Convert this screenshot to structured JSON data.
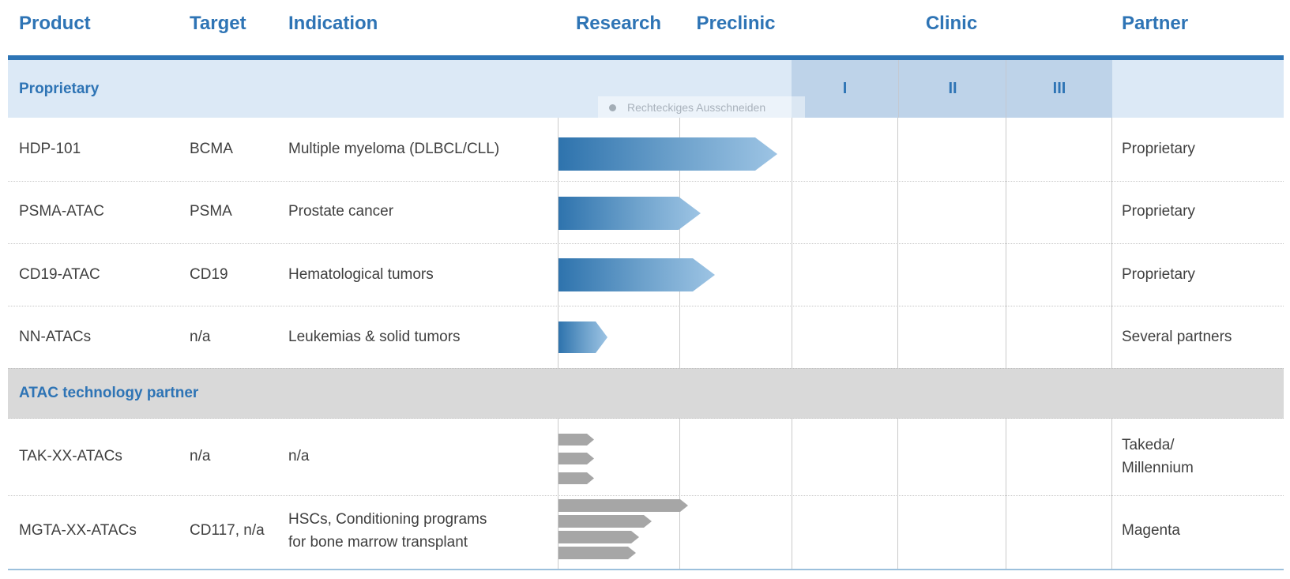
{
  "header": {
    "product": "Product",
    "target": "Target",
    "indication": "Indication",
    "research": "Research",
    "preclinic": "Preclinic",
    "clinic": "Clinic",
    "partner": "Partner"
  },
  "clinic_phases": {
    "p1": "I",
    "p2": "II",
    "p3": "III"
  },
  "sections": {
    "proprietary": "Proprietary",
    "atac_partner": "ATAC technology partner"
  },
  "watermark": {
    "label": "Rechteckiges Ausschneiden"
  },
  "rows": [
    {
      "product": "HDP-101",
      "target": "BCMA",
      "indication": "Multiple myeloma (DLBCL/CLL)",
      "partner": "Proprietary"
    },
    {
      "product": "PSMA-ATAC",
      "target": "PSMA",
      "indication": "Prostate cancer",
      "partner": "Proprietary"
    },
    {
      "product": "CD19-ATAC",
      "target": "CD19",
      "indication": "Hematological tumors",
      "partner": "Proprietary"
    },
    {
      "product": "NN-ATACs",
      "target": "n/a",
      "indication": "Leukemias & solid tumors",
      "partner": "Several partners"
    },
    {
      "product": "TAK-XX-ATACs",
      "target": "n/a",
      "indication": "n/a",
      "partner_lines": [
        "Takeda/",
        "Millennium"
      ]
    },
    {
      "product": "MGTA-XX-ATACs",
      "target": "CD117, n/a",
      "indication_lines": [
        "HSCs, Conditioning programs",
        "for bone marrow transplant"
      ],
      "partner": "Magenta"
    }
  ],
  "chart_data": {
    "type": "bar",
    "title": "Heidelberg Pharma-style product pipeline progression",
    "orientation": "horizontal",
    "phase_axis": [
      "Research",
      "Preclinic",
      "Clinic I",
      "Clinic II",
      "Clinic III"
    ],
    "value_unit": "phase units: 0 = Research start, 1 = Preclinic start, 2 = Clinic I start, 5 = Clinic III end",
    "series": [
      {
        "name": "HDP-101",
        "style": "blue-gradient",
        "values": [
          1.87
        ]
      },
      {
        "name": "PSMA-ATAC",
        "style": "blue-gradient",
        "values": [
          1.19
        ]
      },
      {
        "name": "CD19-ATAC",
        "style": "blue-gradient",
        "values": [
          1.32
        ]
      },
      {
        "name": "NN-ATACs",
        "style": "blue-gradient",
        "values": [
          0.41
        ]
      },
      {
        "name": "TAK-XX-ATACs",
        "style": "gray",
        "values": [
          0.3,
          0.3,
          0.3
        ]
      },
      {
        "name": "MGTA-XX-ATACs",
        "style": "gray",
        "values": [
          1.08,
          0.77,
          0.67,
          0.64
        ]
      }
    ],
    "legend": "none",
    "grid": "vertical phase gridlines on"
  },
  "colors": {
    "header_blue": "#2e74b5",
    "accent_line": "#2e75b6",
    "band_light": "#dce9f6",
    "band_dark": "#bed3e9",
    "section_gray": "#d9d9d9",
    "bar_blue_start": "#2e73ad",
    "bar_blue_end": "#9dc4e4",
    "bar_gray": "#a6a6a6",
    "text": "#3f3f3f",
    "bottom_line": "#9cc0dc"
  }
}
